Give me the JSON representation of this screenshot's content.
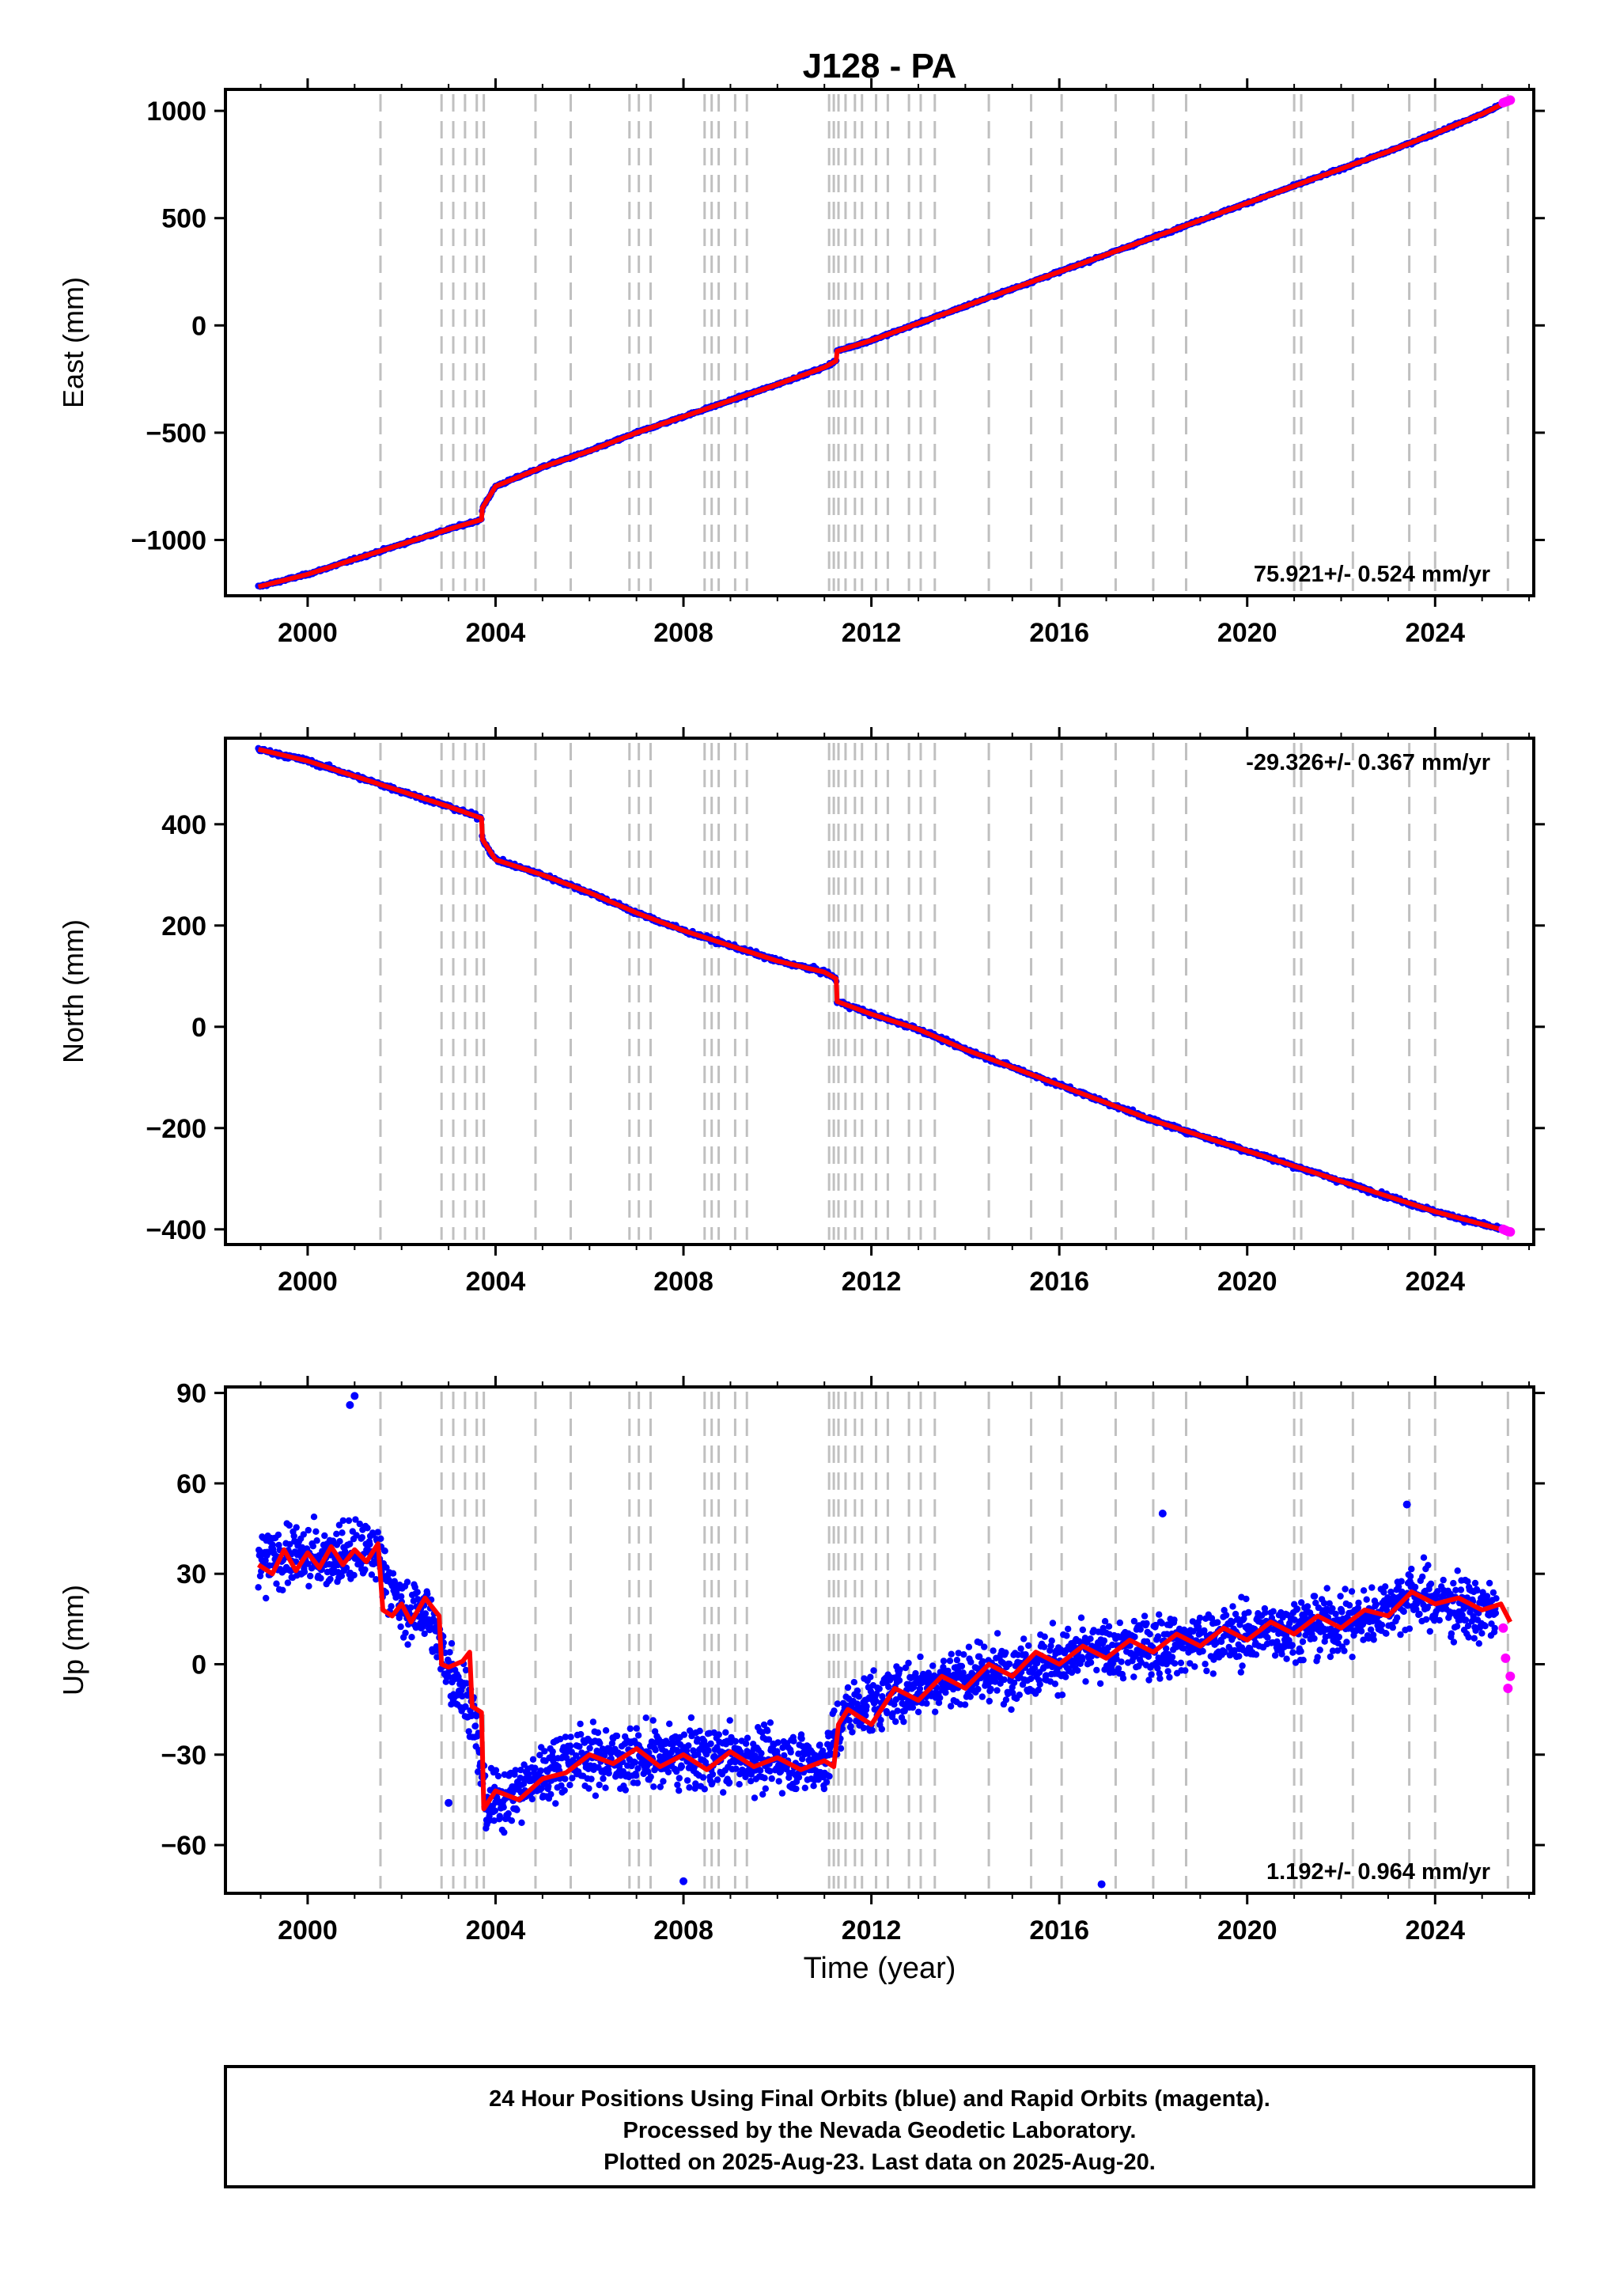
{
  "title": "J128 - PA",
  "xlabel": "Time (year)",
  "footer": {
    "line1": "24 Hour Positions Using Final Orbits (blue) and Rapid Orbits (magenta).",
    "line2": "Processed by the Nevada Geodetic Laboratory.",
    "line3": "Plotted on 2025-Aug-23. Last data on 2025-Aug-20."
  },
  "colors": {
    "final_orbits": "#0000ff",
    "rapid_orbits": "#ff00ff",
    "model": "#ff0000",
    "event_lines": "#c0c0c0"
  },
  "chart_data": [
    {
      "type": "scatter",
      "panel": "east",
      "ylabel": "East (mm)",
      "xlim": [
        1998.25,
        2026.1
      ],
      "ylim": [
        -1260,
        1100
      ],
      "xticks": [
        2000,
        2004,
        2008,
        2012,
        2016,
        2020,
        2024
      ],
      "yticks": [
        -1000,
        -500,
        0,
        500,
        1000
      ],
      "ytick_labels": [
        "−1000",
        "−500",
        "0",
        "500",
        "1000"
      ],
      "rate_label": "75.921+/- 0.524 mm/yr",
      "rate_position": "bottom-right",
      "series": [
        {
          "name": "Final Orbits",
          "x": [
            1998.95,
            2000.0,
            2001.0,
            2002.0,
            2003.0,
            2003.7,
            2003.72,
            2004.0,
            2005.0,
            2006.0,
            2007.0,
            2008.0,
            2009.0,
            2010.0,
            2011.0,
            2011.25,
            2011.27,
            2012.0,
            2013.0,
            2014.0,
            2015.0,
            2016.0,
            2017.0,
            2018.0,
            2019.0,
            2020.0,
            2021.0,
            2022.0,
            2023.0,
            2024.0,
            2025.0,
            2025.6
          ],
          "y": [
            -1218,
            -1160,
            -1090,
            -1020,
            -950,
            -905,
            -850,
            -750,
            -660,
            -585,
            -500,
            -425,
            -350,
            -275,
            -195,
            -165,
            -120,
            -70,
            10,
            90,
            170,
            250,
            330,
            410,
            490,
            570,
            650,
            730,
            810,
            895,
            985,
            1050
          ]
        },
        {
          "name": "Rapid Orbits",
          "x": [
            2025.45,
            2025.5,
            2025.55,
            2025.6
          ],
          "y": [
            1038,
            1042,
            1046,
            1050
          ]
        }
      ]
    },
    {
      "type": "scatter",
      "panel": "north",
      "ylabel": "North (mm)",
      "xlim": [
        1998.25,
        2026.1
      ],
      "ylim": [
        -430,
        570
      ],
      "xticks": [
        2000,
        2004,
        2008,
        2012,
        2016,
        2020,
        2024
      ],
      "yticks": [
        -400,
        -200,
        0,
        200,
        400
      ],
      "ytick_labels": [
        "−400",
        "−200",
        "0",
        "200",
        "400"
      ],
      "rate_label": "-29.326+/- 0.367 mm/yr",
      "rate_position": "top-right",
      "series": [
        {
          "name": "Final Orbits",
          "x": [
            1998.95,
            2000.0,
            2001.0,
            2002.0,
            2003.0,
            2003.7,
            2003.72,
            2004.0,
            2005.0,
            2006.0,
            2007.0,
            2008.0,
            2009.0,
            2010.0,
            2011.0,
            2011.25,
            2011.27,
            2012.0,
            2013.0,
            2014.0,
            2015.0,
            2016.0,
            2017.0,
            2018.0,
            2019.0,
            2020.0,
            2021.0,
            2022.0,
            2023.0,
            2024.0,
            2025.0,
            2025.6
          ],
          "y": [
            548,
            525,
            495,
            465,
            435,
            412,
            370,
            330,
            300,
            265,
            225,
            190,
            160,
            130,
            108,
            95,
            50,
            25,
            -5,
            -45,
            -80,
            -115,
            -150,
            -185,
            -215,
            -245,
            -275,
            -305,
            -335,
            -365,
            -390,
            -405
          ]
        },
        {
          "name": "Rapid Orbits",
          "x": [
            2025.45,
            2025.5,
            2025.55,
            2025.6
          ],
          "y": [
            -400,
            -402,
            -404,
            -405
          ]
        }
      ]
    },
    {
      "type": "scatter",
      "panel": "up",
      "ylabel": "Up (mm)",
      "xlabel": "Time (year)",
      "xlim": [
        1998.25,
        2026.1
      ],
      "ylim": [
        -76,
        92
      ],
      "xticks": [
        2000,
        2004,
        2008,
        2012,
        2016,
        2020,
        2024
      ],
      "yticks": [
        -60,
        -30,
        0,
        30,
        60,
        90
      ],
      "ytick_labels": [
        "−60",
        "−30",
        "0",
        "30",
        "60",
        "90"
      ],
      "rate_label": "1.192+/- 0.964 mm/yr",
      "rate_position": "bottom-right",
      "model": {
        "name": "Model",
        "x": [
          1998.95,
          1999.25,
          1999.5,
          1999.75,
          2000.0,
          2000.25,
          2000.5,
          2000.75,
          2001.0,
          2001.25,
          2001.5,
          2001.6,
          2001.8,
          2002.0,
          2002.2,
          2002.5,
          2002.8,
          2002.85,
          2003.0,
          2003.3,
          2003.45,
          2003.5,
          2003.7,
          2003.75,
          2004.0,
          2004.5,
          2005.0,
          2005.5,
          2006.0,
          2006.5,
          2007.0,
          2007.5,
          2008.0,
          2008.5,
          2009.0,
          2009.5,
          2010.0,
          2010.5,
          2011.0,
          2011.2,
          2011.3,
          2011.5,
          2012.0,
          2012.5,
          2013.0,
          2013.5,
          2014.0,
          2014.5,
          2015.0,
          2015.5,
          2016.0,
          2016.5,
          2017.0,
          2017.5,
          2018.0,
          2018.5,
          2019.0,
          2019.5,
          2020.0,
          2020.5,
          2021.0,
          2021.5,
          2022.0,
          2022.5,
          2023.0,
          2023.5,
          2024.0,
          2024.5,
          2025.0,
          2025.4,
          2025.6
        ],
        "y": [
          33,
          30,
          38,
          31,
          37,
          32,
          39,
          33,
          38,
          34,
          40,
          18,
          16,
          20,
          14,
          22,
          16,
          0,
          -1,
          1,
          4,
          -14,
          -16,
          -48,
          -42,
          -45,
          -38,
          -36,
          -30,
          -33,
          -28,
          -34,
          -30,
          -35,
          -29,
          -34,
          -31,
          -35,
          -32,
          -34,
          -20,
          -15,
          -20,
          -8,
          -12,
          -4,
          -8,
          0,
          -4,
          4,
          0,
          6,
          2,
          8,
          4,
          10,
          6,
          12,
          8,
          14,
          10,
          16,
          12,
          18,
          16,
          24,
          20,
          22,
          18,
          20,
          14
        ],
        "jump_x": [
          2003.72,
          2011.27
        ]
      },
      "series": [
        {
          "name": "Final Orbits",
          "x": [
            1998.95,
            1999.5,
            2000.0,
            2000.5,
            2001.0,
            2001.5,
            2002.0,
            2002.5,
            2003.0,
            2003.5,
            2003.8,
            2004.5,
            2005.5,
            2006.5,
            2007.5,
            2008.5,
            2009.5,
            2010.5,
            2011.0,
            2011.5,
            2012.5,
            2013.5,
            2014.5,
            2015.5,
            2016.5,
            2017.5,
            2018.5,
            2019.5,
            2020.5,
            2021.5,
            2022.5,
            2023.5,
            2024.5,
            2025.3
          ],
          "y": [
            33,
            36,
            35,
            36,
            37,
            37,
            17,
            18,
            -1,
            -14,
            -47,
            -42,
            -31,
            -31,
            -31,
            -31,
            -31,
            -32,
            -33,
            -15,
            -10,
            -5,
            -3,
            0,
            3,
            5,
            7,
            9,
            11,
            13,
            15,
            23,
            19,
            17
          ]
        },
        {
          "name": "Rapid Orbits",
          "x": [
            2025.45,
            2025.5,
            2025.55,
            2025.6
          ],
          "y": [
            12,
            2,
            -8,
            -4
          ]
        }
      ],
      "outliers": {
        "x": [
          2001.0,
          2000.9,
          2003.0,
          2008.0,
          2016.9,
          2023.4,
          2018.2
        ],
        "y": [
          89,
          86,
          -46,
          -72,
          -73,
          53,
          50
        ]
      }
    }
  ],
  "event_lines": [
    2001.55,
    2002.85,
    2003.1,
    2003.35,
    2003.6,
    2003.75,
    2004.85,
    2005.6,
    2006.85,
    2007.05,
    2007.3,
    2008.45,
    2008.6,
    2008.75,
    2009.1,
    2009.35,
    2011.1,
    2011.2,
    2011.3,
    2011.45,
    2011.65,
    2011.8,
    2012.1,
    2012.35,
    2012.8,
    2013.05,
    2013.35,
    2014.5,
    2015.4,
    2016.05,
    2017.2,
    2018.0,
    2018.7,
    2021.0,
    2021.15,
    2022.25,
    2023.45,
    2024.0,
    2025.55
  ]
}
